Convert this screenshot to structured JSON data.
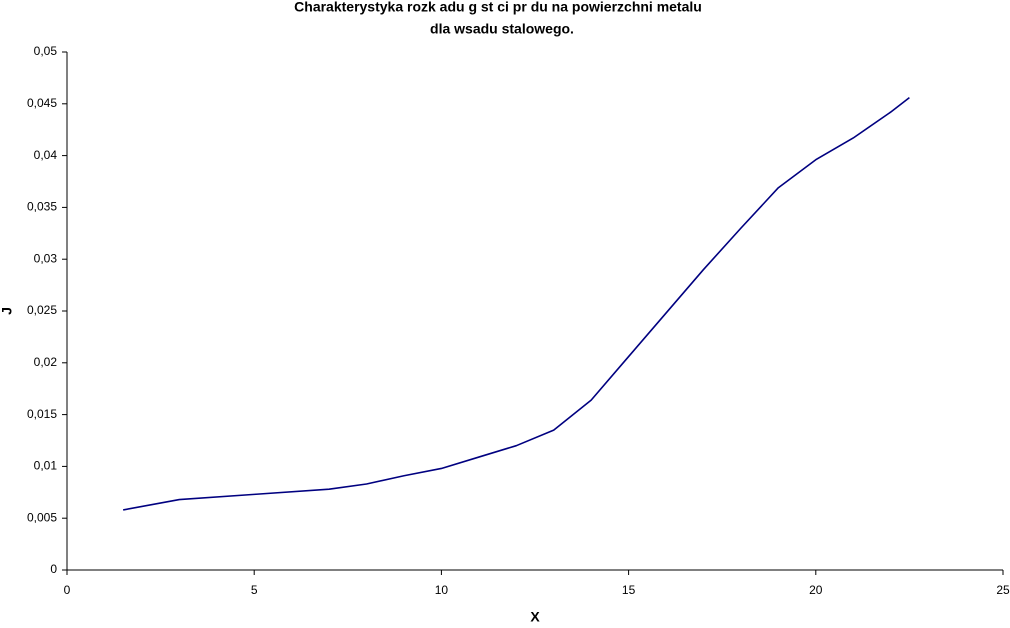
{
  "chart_data": {
    "type": "line",
    "title": [
      "Charakterystyka rozk adu g  st  ci pr  du na powierzchni metalu",
      "dla wsadu stalowego."
    ],
    "x_label": "X",
    "y_label": "J",
    "x": [
      1.5,
      3,
      5,
      7,
      8,
      9,
      10,
      11,
      12,
      13,
      14,
      15,
      16,
      17,
      18,
      19,
      20,
      21,
      22,
      22.5
    ],
    "series": [
      {
        "name": "J",
        "color": "#000080",
        "values": [
          0.0058,
          0.0068,
          0.0073,
          0.0078,
          0.0083,
          0.0091,
          0.0098,
          0.0109,
          0.012,
          0.0135,
          0.0164,
          0.0206,
          0.0248,
          0.029,
          0.033,
          0.0369,
          0.0396,
          0.0417,
          0.0442,
          0.0456
        ]
      }
    ],
    "xlim": [
      0,
      25
    ],
    "xticks": [
      0,
      5,
      10,
      15,
      20,
      25
    ],
    "ylim": [
      0,
      0.05
    ],
    "yticks": [
      0,
      {
        "value": 0.005,
        "label": "0,005"
      },
      {
        "value": 0.01,
        "label": "0,01"
      },
      {
        "value": 0.015,
        "label": "0,015"
      },
      {
        "value": 0.02,
        "label": "0,02"
      },
      {
        "value": 0.025,
        "label": "0,025"
      },
      {
        "value": 0.03,
        "label": "0,03"
      },
      {
        "value": 0.035,
        "label": "0,035"
      },
      {
        "value": 0.04,
        "label": "0,04"
      },
      {
        "value": 0.045,
        "label": "0,045"
      },
      {
        "value": 0.05,
        "label": "0,05"
      }
    ],
    "grid": false
  }
}
